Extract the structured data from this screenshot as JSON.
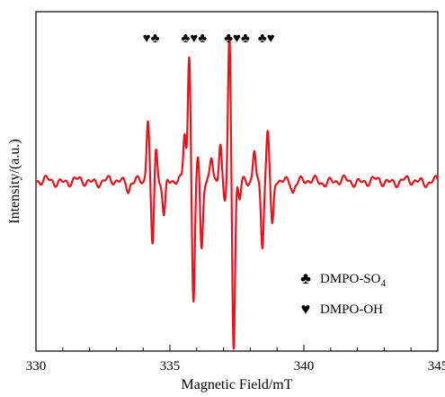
{
  "chart_data": {
    "type": "line",
    "xlabel": "Magnetic Field/mT",
    "ylabel": "Intensity/(a.u.)",
    "xlim": [
      330,
      345
    ],
    "ylim": [
      0,
      1
    ],
    "xticks": [
      "330",
      "335",
      "340",
      "345"
    ],
    "grid": false,
    "color": "#e8141b",
    "peak_markers": [
      {
        "x": 334.3,
        "text": "♥♣"
      },
      {
        "x": 335.9,
        "text": "♣♥♣"
      },
      {
        "x": 337.5,
        "text": "♣♥♣"
      },
      {
        "x": 338.6,
        "text": "♣♥"
      }
    ],
    "legend": {
      "position": "bottom-right",
      "items": [
        {
          "symbol": "♣",
          "label": "DMPO-SO",
          "sub": "4"
        },
        {
          "symbol": "♥",
          "label": "DMPO-OH",
          "sub": ""
        }
      ]
    },
    "series": [
      {
        "baseline": 0.5,
        "noise_amplitude": 0.015,
        "peaks": [
          {
            "x": 334.18,
            "amp": 0.18
          },
          {
            "x": 334.35,
            "amp": -0.2
          },
          {
            "x": 334.48,
            "amp": 0.11
          },
          {
            "x": 334.78,
            "amp": -0.1
          },
          {
            "x": 335.55,
            "amp": 0.14
          },
          {
            "x": 335.72,
            "amp": 0.38
          },
          {
            "x": 335.88,
            "amp": -0.36
          },
          {
            "x": 336.05,
            "amp": 0.08
          },
          {
            "x": 336.18,
            "amp": -0.2
          },
          {
            "x": 336.55,
            "amp": 0.06
          },
          {
            "x": 336.88,
            "amp": 0.12
          },
          {
            "x": 337.05,
            "amp": -0.06
          },
          {
            "x": 337.22,
            "amp": 0.43
          },
          {
            "x": 337.38,
            "amp": -0.48
          },
          {
            "x": 337.6,
            "amp": -0.06
          },
          {
            "x": 338.15,
            "amp": 0.09
          },
          {
            "x": 338.45,
            "amp": -0.18
          },
          {
            "x": 338.65,
            "amp": 0.15
          },
          {
            "x": 338.82,
            "amp": -0.14
          },
          {
            "x": 333.45,
            "amp": -0.02
          },
          {
            "x": 339.6,
            "amp": -0.025
          }
        ]
      }
    ]
  }
}
